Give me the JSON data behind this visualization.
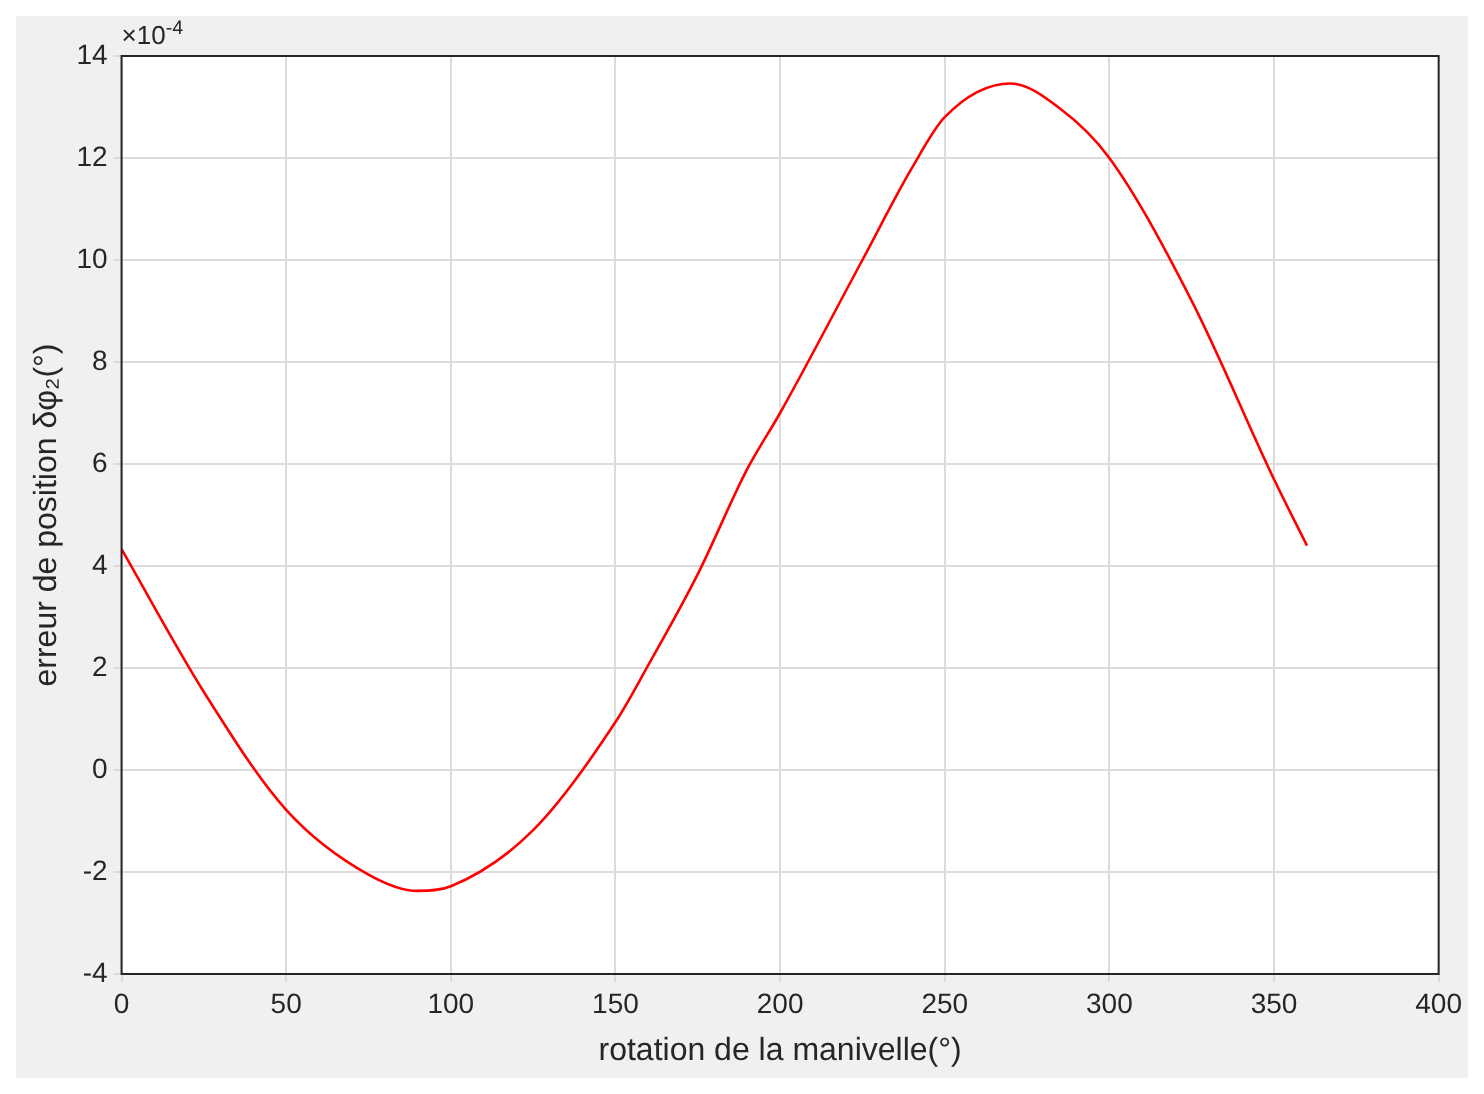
{
  "chart_data": {
    "type": "line",
    "xlabel": "rotation de la manivelle(°)",
    "ylabel": "erreur de position δφ₂(°)",
    "annotations": [
      "×10$^{-4}$"
    ],
    "xlim": [
      0,
      400
    ],
    "xticks": [
      0,
      50,
      100,
      150,
      200,
      250,
      300,
      350,
      400
    ],
    "ylim": [
      -4,
      14
    ],
    "yticks": [
      -4,
      -2,
      0,
      2,
      4,
      6,
      8,
      10,
      12,
      14
    ],
    "grid": true,
    "line_style": "solid",
    "marker": "none",
    "series": [
      {
        "color": "#ff0000",
        "x": [
          0,
          25,
          50,
          75,
          90,
          100,
          125,
          150,
          160,
          175,
          190,
          200,
          225,
          240,
          250,
          270,
          285,
          300,
          325,
          350,
          360
        ],
        "values": [
          4.33,
          1.53,
          -0.78,
          -2.05,
          -2.37,
          -2.28,
          -1.18,
          0.94,
          2.06,
          3.84,
          5.9,
          7.0,
          10.0,
          11.8,
          12.8,
          13.46,
          12.97,
          12.0,
          9.2,
          5.7,
          4.4
        ]
      }
    ]
  }
}
